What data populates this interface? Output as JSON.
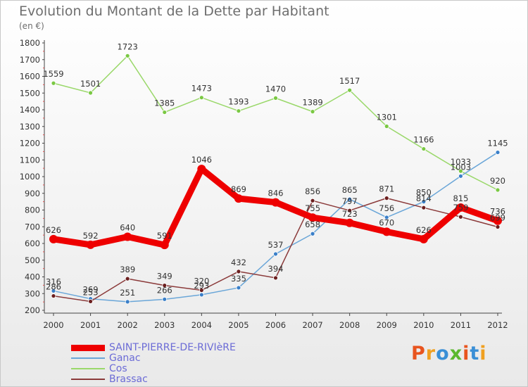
{
  "title": "Evolution du Montant de la Dette par Habitant",
  "subtitle": "(en €)",
  "logo": {
    "text": "Proxiti",
    "colors": [
      "#e8541e",
      "#f0a020",
      "#3a8fd6",
      "#5bb82e",
      "#e8541e",
      "#3a8fd6",
      "#f0a020"
    ]
  },
  "chart_data": {
    "type": "line",
    "x": [
      "2000",
      "2001",
      "2002",
      "2003",
      "2004",
      "2005",
      "2006",
      "2007",
      "2008",
      "2009",
      "2010",
      "2011",
      "2012"
    ],
    "ylim": [
      200,
      1800
    ],
    "yticks": [
      200,
      300,
      400,
      500,
      600,
      700,
      800,
      900,
      1000,
      1100,
      1200,
      1300,
      1400,
      1500,
      1600,
      1700,
      1800
    ],
    "grid": false,
    "legend_position": "bottom-left",
    "series": [
      {
        "name": "SAINT-PIERRE-DE-RIVIèRE",
        "color": "#ee0000",
        "width": 9,
        "values": [
          626,
          592,
          640,
          591,
          1046,
          869,
          846,
          755,
          723,
          670,
          626,
          815,
          736
        ],
        "labels": [
          "626",
          "592",
          "640",
          "591",
          "1046",
          "869",
          "846",
          "755",
          "723",
          "670",
          "626",
          "815",
          "736"
        ]
      },
      {
        "name": "Ganac",
        "color": "#6aa6d8",
        "point": "#3a7fc8",
        "width": 1.5,
        "values": [
          316,
          269,
          251,
          266,
          293,
          335,
          537,
          658,
          865,
          756,
          850,
          1003,
          1145
        ],
        "labels": [
          "316",
          "269",
          "251",
          "266",
          "293",
          "335",
          "537",
          "658",
          "865",
          "756",
          "850",
          "1003",
          "1145"
        ]
      },
      {
        "name": "Cos",
        "color": "#9ad86a",
        "point": "#7ac843",
        "width": 1.5,
        "values": [
          1559,
          1501,
          1723,
          1385,
          1473,
          1393,
          1470,
          1389,
          1517,
          1301,
          1166,
          1033,
          920
        ],
        "labels": [
          "1559",
          "1501",
          "1723",
          "1385",
          "1473",
          "1393",
          "1470",
          "1389",
          "1517",
          "1301",
          "1166",
          "1033",
          "920"
        ]
      },
      {
        "name": "Brassac",
        "color": "#8b3a3a",
        "point": "#6b1e1e",
        "width": 1.5,
        "values": [
          286,
          253,
          389,
          349,
          320,
          432,
          394,
          856,
          797,
          871,
          814,
          759,
          699
        ],
        "labels": [
          "286",
          "253",
          "389",
          "349",
          "320",
          "432",
          "394",
          "856",
          "797",
          "871",
          "814",
          "759",
          "699"
        ]
      }
    ]
  }
}
